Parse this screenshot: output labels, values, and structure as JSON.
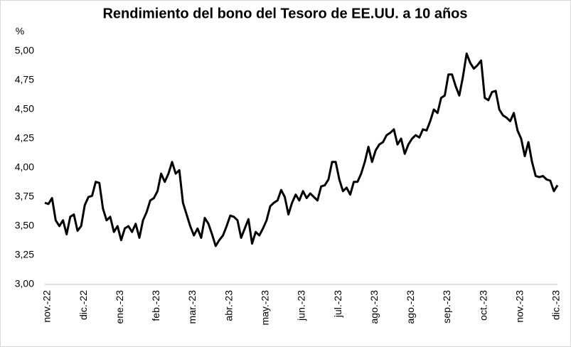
{
  "chart_data": {
    "type": "line",
    "title": "Rendimiento del bono del Tesoro de EE.UU. a 10 años",
    "y_label": "%",
    "categories": [
      "nov.-22",
      null,
      null,
      null,
      null,
      null,
      null,
      null,
      null,
      null,
      "dic.-22",
      null,
      null,
      null,
      null,
      null,
      null,
      null,
      null,
      null,
      "ene.-23",
      null,
      null,
      null,
      null,
      null,
      null,
      null,
      null,
      null,
      "feb.-23",
      null,
      null,
      null,
      null,
      null,
      null,
      null,
      null,
      null,
      "mar.-23",
      null,
      null,
      null,
      null,
      null,
      null,
      null,
      null,
      null,
      "abr.-23",
      null,
      null,
      null,
      null,
      null,
      null,
      null,
      null,
      null,
      "may.-23",
      null,
      null,
      null,
      null,
      null,
      null,
      null,
      null,
      null,
      "jun.-23",
      null,
      null,
      null,
      null,
      null,
      null,
      null,
      null,
      null,
      "jul.-23",
      null,
      null,
      null,
      null,
      null,
      null,
      null,
      null,
      null,
      "ago.-23",
      null,
      null,
      null,
      null,
      null,
      null,
      null,
      null,
      null,
      "ago.-23",
      null,
      null,
      null,
      null,
      null,
      null,
      null,
      null,
      null,
      "sep.-23",
      null,
      null,
      null,
      null,
      null,
      null,
      null,
      null,
      null,
      "oct.-23",
      null,
      null,
      null,
      null,
      null,
      null,
      null,
      null,
      null,
      "nov.-23",
      null,
      null,
      null,
      null,
      null,
      null,
      null,
      null,
      null,
      "dic.-23",
      null
    ],
    "values": [
      3.7,
      3.69,
      3.74,
      3.55,
      3.5,
      3.55,
      3.43,
      3.58,
      3.6,
      3.46,
      3.5,
      3.68,
      3.75,
      3.76,
      3.88,
      3.87,
      3.65,
      3.55,
      3.58,
      3.45,
      3.5,
      3.38,
      3.48,
      3.5,
      3.45,
      3.52,
      3.4,
      3.55,
      3.62,
      3.72,
      3.74,
      3.8,
      3.95,
      3.88,
      3.95,
      4.05,
      3.95,
      3.98,
      3.7,
      3.6,
      3.5,
      3.42,
      3.48,
      3.4,
      3.57,
      3.52,
      3.43,
      3.33,
      3.38,
      3.42,
      3.5,
      3.59,
      3.58,
      3.55,
      3.4,
      3.48,
      3.56,
      3.35,
      3.45,
      3.42,
      3.48,
      3.55,
      3.67,
      3.7,
      3.72,
      3.81,
      3.75,
      3.6,
      3.7,
      3.77,
      3.72,
      3.8,
      3.74,
      3.78,
      3.75,
      3.72,
      3.84,
      3.85,
      3.9,
      4.05,
      4.05,
      3.9,
      3.8,
      3.83,
      3.77,
      3.88,
      3.88,
      3.95,
      4.05,
      4.18,
      4.05,
      4.15,
      4.2,
      4.22,
      4.28,
      4.3,
      4.33,
      4.2,
      4.25,
      4.12,
      4.2,
      4.25,
      4.28,
      4.26,
      4.33,
      4.32,
      4.4,
      4.5,
      4.47,
      4.6,
      4.62,
      4.8,
      4.8,
      4.7,
      4.62,
      4.78,
      4.98,
      4.9,
      4.85,
      4.88,
      4.92,
      4.6,
      4.58,
      4.65,
      4.66,
      4.5,
      4.45,
      4.43,
      4.4,
      4.47,
      4.32,
      4.25,
      4.1,
      4.22,
      4.05,
      3.93,
      3.92,
      3.93,
      3.9,
      3.89,
      3.8,
      3.85
    ],
    "color": "#000000",
    "ylim": [
      3,
      5
    ],
    "yticks": [
      {
        "value": 3,
        "label": "3,00"
      },
      {
        "value": 3.25,
        "label": "3,25"
      },
      {
        "value": 3.5,
        "label": "3,50"
      },
      {
        "value": 3.75,
        "label": "3,75"
      },
      {
        "value": 4,
        "label": "4,00"
      },
      {
        "value": 4.25,
        "label": "4,25"
      },
      {
        "value": 4.5,
        "label": "4,50"
      },
      {
        "value": 4.75,
        "label": "4,75"
      },
      {
        "value": 5,
        "label": "5,00"
      }
    ],
    "grid": false
  }
}
